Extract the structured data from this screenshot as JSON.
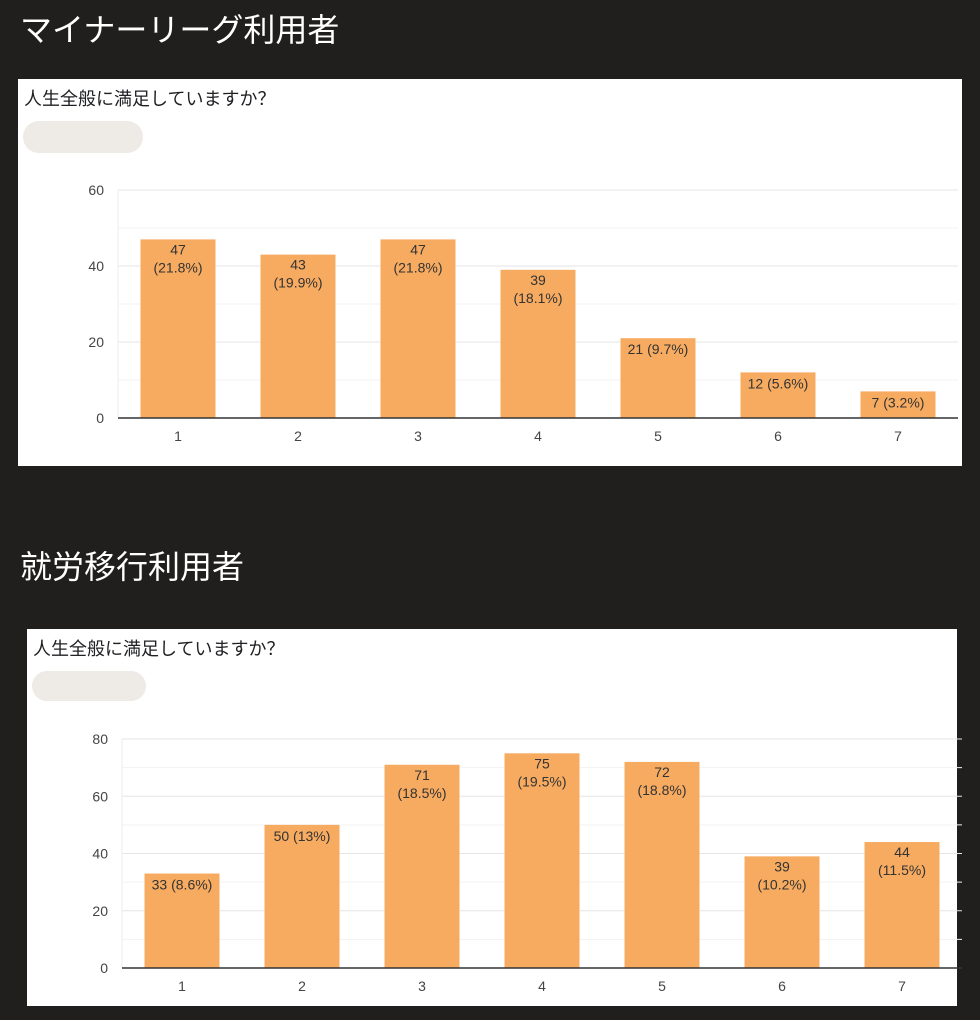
{
  "sections": [
    {
      "heading": "マイナーリーグ利用者",
      "question": "人生全般に満足していますか？",
      "chart_data": {
        "type": "bar",
        "categories": [
          "1",
          "2",
          "3",
          "4",
          "5",
          "6",
          "7"
        ],
        "values": [
          47,
          43,
          47,
          39,
          21,
          12,
          7
        ],
        "percent_labels": [
          "21.8%",
          "19.9%",
          "21.8%",
          "18.1%",
          "9.7%",
          "5.6%",
          "3.2%"
        ],
        "ylim": [
          0,
          60
        ],
        "yticks": [
          0,
          20,
          40,
          60
        ],
        "bar_color": "#f6ab60",
        "grid": true
      }
    },
    {
      "heading": "就労移行利用者",
      "question": "人生全般に満足していますか？",
      "chart_data": {
        "type": "bar",
        "categories": [
          "1",
          "2",
          "3",
          "4",
          "5",
          "6",
          "7"
        ],
        "values": [
          33,
          50,
          71,
          75,
          72,
          39,
          44
        ],
        "percent_labels": [
          "8.6%",
          "13%",
          "18.5%",
          "19.5%",
          "18.8%",
          "10.2%",
          "11.5%"
        ],
        "ylim": [
          0,
          80
        ],
        "yticks": [
          0,
          20,
          40,
          60,
          80
        ],
        "bar_color": "#f6ab60",
        "grid": true
      }
    }
  ]
}
